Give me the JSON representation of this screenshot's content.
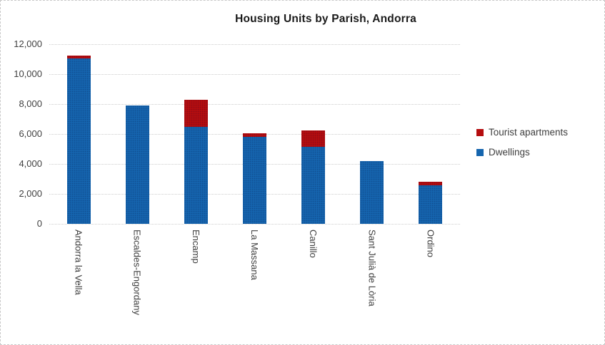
{
  "chart_data": {
    "type": "bar",
    "stacked": true,
    "title": "Housing Units by Parish, Andorra",
    "categories": [
      "Andorra la Vella",
      "Escaldes-Engordany",
      "Encamp",
      "La Massana",
      "Canillo",
      "Sant Julià de Lòria",
      "Ordino"
    ],
    "series": [
      {
        "name": "Dwellings",
        "color": "#1565ae",
        "values": [
          11050,
          7900,
          6500,
          5800,
          5150,
          4200,
          2550
        ]
      },
      {
        "name": "Tourist apartments",
        "color": "#b50d0f",
        "values": [
          200,
          0,
          1800,
          250,
          1100,
          0,
          250
        ]
      }
    ],
    "xlabel": "",
    "ylabel": "",
    "ylim": [
      0,
      12000
    ],
    "ytick_step": 2000,
    "ytick_labels": [
      "0",
      "2,000",
      "4,000",
      "6,000",
      "8,000",
      "10,000",
      "12,000"
    ],
    "grid": "horizontal-dotted",
    "legend_position": "right",
    "legend_order_top_to_bottom": [
      "Tourist apartments",
      "Dwellings"
    ],
    "colors": {
      "dwellings": "#1565ae",
      "tourist_apartments": "#b50d0f",
      "gridline": "#cdcdcd",
      "axis_text": "#3f3f3f",
      "title_text": "#1a1a1a"
    }
  }
}
